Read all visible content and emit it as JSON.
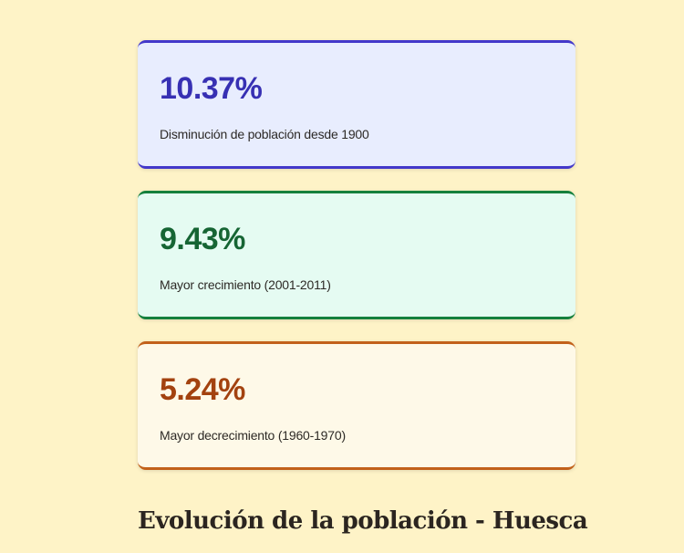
{
  "stats": [
    {
      "value": "10.37%",
      "label": "Disminución de población desde 1900",
      "accent_color": "#4338ca",
      "background_color": "#e8edfe",
      "value_color": "#3730b3"
    },
    {
      "value": "9.43%",
      "label": "Mayor crecimiento (2001-2011)",
      "accent_color": "#15803d",
      "background_color": "#e5fbf2",
      "value_color": "#166534"
    },
    {
      "value": "5.24%",
      "label": "Mayor decrecimiento (1960-1970)",
      "accent_color": "#c2611a",
      "background_color": "#fef9e8",
      "value_color": "#a3420f"
    }
  ],
  "section": {
    "title": "Evolución de la población - Huesca"
  },
  "page": {
    "background_color": "#fef3c7"
  }
}
